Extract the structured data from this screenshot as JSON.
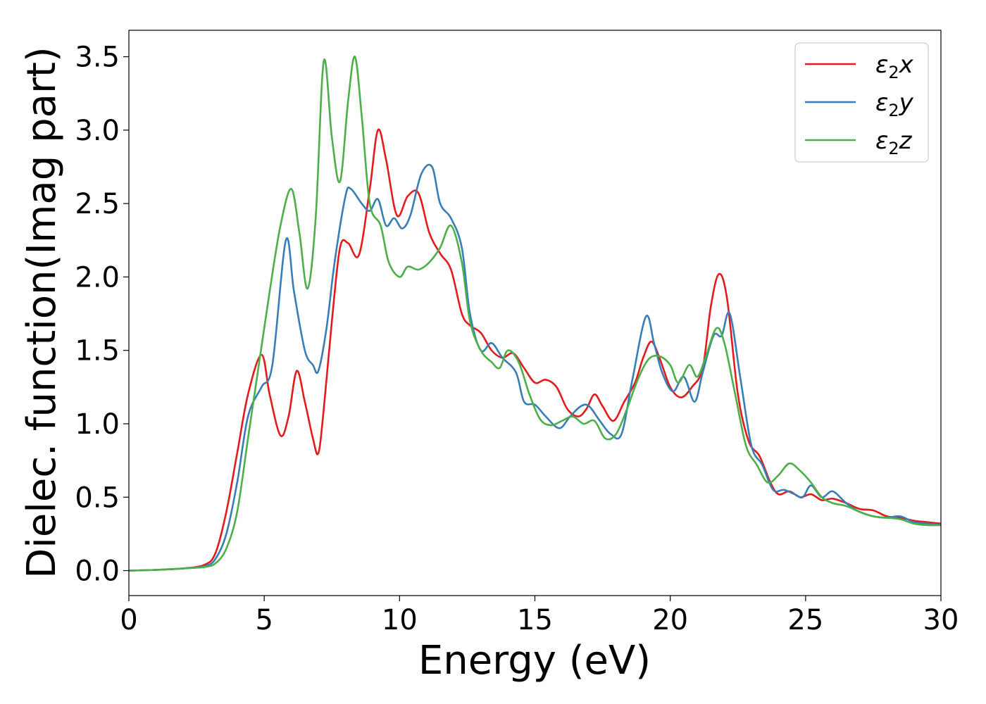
{
  "chart_data": {
    "type": "line",
    "xlabel": "Energy (eV)",
    "ylabel": "Dielec. function(Imag part)",
    "xlim": [
      0,
      30
    ],
    "ylim": [
      -0.17,
      3.68
    ],
    "xticks": [
      0,
      5,
      10,
      15,
      20,
      25,
      30
    ],
    "yticks": [
      0.0,
      0.5,
      1.0,
      1.5,
      2.0,
      2.5,
      3.0,
      3.5
    ],
    "xtick_labels": [
      "0",
      "5",
      "10",
      "15",
      "20",
      "25",
      "30"
    ],
    "ytick_labels": [
      "0.0",
      "0.5",
      "1.0",
      "1.5",
      "2.0",
      "2.5",
      "3.0",
      "3.5"
    ],
    "grid": false,
    "legend_position": "top-right",
    "series": [
      {
        "name": "ε₂x",
        "label_base": "ε",
        "label_sub": "2",
        "label_suffix": "x",
        "color": "#e41a1c",
        "points": [
          [
            0,
            0
          ],
          [
            1,
            0.005
          ],
          [
            2,
            0.015
          ],
          [
            2.8,
            0.04
          ],
          [
            3.2,
            0.12
          ],
          [
            3.6,
            0.4
          ],
          [
            4.0,
            0.8
          ],
          [
            4.4,
            1.2
          ],
          [
            4.9,
            1.47
          ],
          [
            5.2,
            1.2
          ],
          [
            5.6,
            0.92
          ],
          [
            5.9,
            1.05
          ],
          [
            6.2,
            1.36
          ],
          [
            6.5,
            1.15
          ],
          [
            6.8,
            0.9
          ],
          [
            7.0,
            0.8
          ],
          [
            7.2,
            1.1
          ],
          [
            7.5,
            1.7
          ],
          [
            7.8,
            2.2
          ],
          [
            8.1,
            2.23
          ],
          [
            8.5,
            2.15
          ],
          [
            8.9,
            2.6
          ],
          [
            9.2,
            3.0
          ],
          [
            9.5,
            2.8
          ],
          [
            9.9,
            2.42
          ],
          [
            10.3,
            2.55
          ],
          [
            10.7,
            2.57
          ],
          [
            11.1,
            2.3
          ],
          [
            11.5,
            2.16
          ],
          [
            11.9,
            2.05
          ],
          [
            12.3,
            1.75
          ],
          [
            12.6,
            1.67
          ],
          [
            13.0,
            1.62
          ],
          [
            13.4,
            1.5
          ],
          [
            13.8,
            1.45
          ],
          [
            14.2,
            1.48
          ],
          [
            14.6,
            1.38
          ],
          [
            15.0,
            1.28
          ],
          [
            15.4,
            1.3
          ],
          [
            15.8,
            1.25
          ],
          [
            16.2,
            1.1
          ],
          [
            16.6,
            1.05
          ],
          [
            16.9,
            1.1
          ],
          [
            17.2,
            1.2
          ],
          [
            17.5,
            1.12
          ],
          [
            17.9,
            1.02
          ],
          [
            18.3,
            1.15
          ],
          [
            18.7,
            1.28
          ],
          [
            19.0,
            1.45
          ],
          [
            19.3,
            1.56
          ],
          [
            19.6,
            1.45
          ],
          [
            20.0,
            1.25
          ],
          [
            20.4,
            1.18
          ],
          [
            20.8,
            1.25
          ],
          [
            21.2,
            1.38
          ],
          [
            21.5,
            1.8
          ],
          [
            21.8,
            2.02
          ],
          [
            22.1,
            1.85
          ],
          [
            22.5,
            1.2
          ],
          [
            22.9,
            0.88
          ],
          [
            23.3,
            0.78
          ],
          [
            23.7,
            0.6
          ],
          [
            24.0,
            0.52
          ],
          [
            24.4,
            0.54
          ],
          [
            24.8,
            0.5
          ],
          [
            25.2,
            0.52
          ],
          [
            25.6,
            0.48
          ],
          [
            26.0,
            0.49
          ],
          [
            26.5,
            0.46
          ],
          [
            27.0,
            0.42
          ],
          [
            27.5,
            0.41
          ],
          [
            28.0,
            0.37
          ],
          [
            28.5,
            0.36
          ],
          [
            29.0,
            0.34
          ],
          [
            29.5,
            0.33
          ],
          [
            30.0,
            0.32
          ]
        ]
      },
      {
        "name": "ε₂y",
        "label_base": "ε",
        "label_sub": "2",
        "label_suffix": "y",
        "color": "#377eb8",
        "points": [
          [
            0,
            0
          ],
          [
            1,
            0.005
          ],
          [
            2,
            0.015
          ],
          [
            2.8,
            0.03
          ],
          [
            3.2,
            0.08
          ],
          [
            3.6,
            0.25
          ],
          [
            4.0,
            0.6
          ],
          [
            4.4,
            1.05
          ],
          [
            4.9,
            1.25
          ],
          [
            5.3,
            1.4
          ],
          [
            5.8,
            2.25
          ],
          [
            6.1,
            1.9
          ],
          [
            6.5,
            1.5
          ],
          [
            6.8,
            1.4
          ],
          [
            7.0,
            1.36
          ],
          [
            7.3,
            1.65
          ],
          [
            7.6,
            2.1
          ],
          [
            8.0,
            2.55
          ],
          [
            8.2,
            2.6
          ],
          [
            8.6,
            2.5
          ],
          [
            8.9,
            2.45
          ],
          [
            9.2,
            2.53
          ],
          [
            9.5,
            2.35
          ],
          [
            9.8,
            2.4
          ],
          [
            10.1,
            2.33
          ],
          [
            10.4,
            2.42
          ],
          [
            10.8,
            2.7
          ],
          [
            11.2,
            2.75
          ],
          [
            11.5,
            2.5
          ],
          [
            11.9,
            2.4
          ],
          [
            12.3,
            2.2
          ],
          [
            12.6,
            1.75
          ],
          [
            13.0,
            1.5
          ],
          [
            13.4,
            1.55
          ],
          [
            13.8,
            1.45
          ],
          [
            14.3,
            1.35
          ],
          [
            14.6,
            1.15
          ],
          [
            15.0,
            1.13
          ],
          [
            15.4,
            1.05
          ],
          [
            15.9,
            0.97
          ],
          [
            16.3,
            1.05
          ],
          [
            16.7,
            1.12
          ],
          [
            17.0,
            1.12
          ],
          [
            17.4,
            1.02
          ],
          [
            17.8,
            0.93
          ],
          [
            18.2,
            0.93
          ],
          [
            18.6,
            1.3
          ],
          [
            19.1,
            1.73
          ],
          [
            19.4,
            1.55
          ],
          [
            19.7,
            1.35
          ],
          [
            20.1,
            1.22
          ],
          [
            20.5,
            1.32
          ],
          [
            20.9,
            1.15
          ],
          [
            21.2,
            1.35
          ],
          [
            21.6,
            1.6
          ],
          [
            21.9,
            1.6
          ],
          [
            22.2,
            1.75
          ],
          [
            22.6,
            1.3
          ],
          [
            23.0,
            0.85
          ],
          [
            23.4,
            0.72
          ],
          [
            23.8,
            0.55
          ],
          [
            24.2,
            0.55
          ],
          [
            24.6,
            0.52
          ],
          [
            24.9,
            0.5
          ],
          [
            25.2,
            0.58
          ],
          [
            25.6,
            0.5
          ],
          [
            26.0,
            0.54
          ],
          [
            26.5,
            0.46
          ],
          [
            27.0,
            0.4
          ],
          [
            27.5,
            0.37
          ],
          [
            28.0,
            0.36
          ],
          [
            28.5,
            0.37
          ],
          [
            29.0,
            0.33
          ],
          [
            29.5,
            0.32
          ],
          [
            30.0,
            0.31
          ]
        ]
      },
      {
        "name": "ε₂z",
        "label_base": "ε",
        "label_sub": "2",
        "label_suffix": "z",
        "color": "#4daf4a",
        "points": [
          [
            0,
            0
          ],
          [
            1,
            0.005
          ],
          [
            2,
            0.015
          ],
          [
            2.8,
            0.025
          ],
          [
            3.2,
            0.05
          ],
          [
            3.6,
            0.15
          ],
          [
            4.0,
            0.4
          ],
          [
            4.4,
            0.9
          ],
          [
            4.8,
            1.4
          ],
          [
            5.2,
            1.9
          ],
          [
            5.6,
            2.35
          ],
          [
            6.0,
            2.6
          ],
          [
            6.3,
            2.3
          ],
          [
            6.6,
            1.92
          ],
          [
            6.9,
            2.4
          ],
          [
            7.2,
            3.47
          ],
          [
            7.5,
            2.95
          ],
          [
            7.8,
            2.65
          ],
          [
            8.1,
            3.2
          ],
          [
            8.35,
            3.5
          ],
          [
            8.6,
            3.1
          ],
          [
            8.9,
            2.5
          ],
          [
            9.3,
            2.35
          ],
          [
            9.6,
            2.1
          ],
          [
            10.0,
            2.0
          ],
          [
            10.3,
            2.07
          ],
          [
            10.7,
            2.05
          ],
          [
            11.1,
            2.1
          ],
          [
            11.5,
            2.2
          ],
          [
            11.9,
            2.35
          ],
          [
            12.3,
            2.1
          ],
          [
            12.6,
            1.7
          ],
          [
            13.0,
            1.5
          ],
          [
            13.4,
            1.42
          ],
          [
            13.7,
            1.38
          ],
          [
            14.0,
            1.5
          ],
          [
            14.4,
            1.42
          ],
          [
            14.8,
            1.2
          ],
          [
            15.2,
            1.03
          ],
          [
            15.6,
            0.99
          ],
          [
            16.0,
            1.02
          ],
          [
            16.4,
            1.05
          ],
          [
            16.8,
            1.0
          ],
          [
            17.2,
            1.02
          ],
          [
            17.6,
            0.9
          ],
          [
            18.0,
            0.93
          ],
          [
            18.4,
            1.1
          ],
          [
            18.8,
            1.3
          ],
          [
            19.2,
            1.44
          ],
          [
            19.6,
            1.46
          ],
          [
            20.0,
            1.4
          ],
          [
            20.3,
            1.28
          ],
          [
            20.7,
            1.4
          ],
          [
            21.0,
            1.32
          ],
          [
            21.3,
            1.45
          ],
          [
            21.7,
            1.65
          ],
          [
            22.0,
            1.55
          ],
          [
            22.4,
            1.2
          ],
          [
            22.8,
            0.85
          ],
          [
            23.2,
            0.72
          ],
          [
            23.6,
            0.6
          ],
          [
            24.0,
            0.65
          ],
          [
            24.4,
            0.73
          ],
          [
            24.8,
            0.68
          ],
          [
            25.2,
            0.6
          ],
          [
            25.6,
            0.5
          ],
          [
            26.0,
            0.46
          ],
          [
            26.5,
            0.44
          ],
          [
            27.0,
            0.4
          ],
          [
            27.5,
            0.37
          ],
          [
            28.0,
            0.36
          ],
          [
            28.5,
            0.35
          ],
          [
            29.0,
            0.32
          ],
          [
            29.5,
            0.31
          ],
          [
            30.0,
            0.31
          ]
        ]
      }
    ]
  }
}
